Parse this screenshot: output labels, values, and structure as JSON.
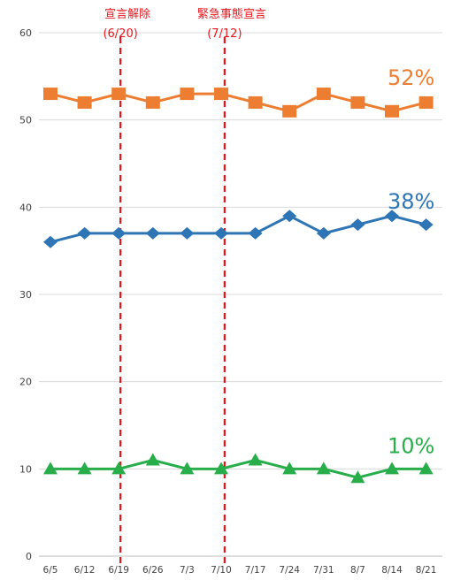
{
  "chart_data": {
    "type": "line",
    "title": "",
    "xlabel": "",
    "ylabel": "",
    "categories": [
      "6/5",
      "6/12",
      "6/19",
      "6/26",
      "7/3",
      "7/10",
      "7/17",
      "7/24",
      "7/31",
      "8/7",
      "8/14",
      "8/21"
    ],
    "ylim": [
      0,
      60
    ],
    "yticks": [
      0,
      10,
      20,
      30,
      40,
      50,
      60
    ],
    "grid": true,
    "series": [
      {
        "values": [
          53,
          52,
          53,
          52,
          53,
          53,
          52,
          51,
          53,
          52,
          51,
          52
        ],
        "color": "#ed7d31",
        "marker": "square",
        "end_label": "52%"
      },
      {
        "values": [
          36,
          37,
          37,
          37,
          37,
          37,
          37,
          39,
          37,
          38,
          39,
          38
        ],
        "color": "#2e75b6",
        "marker": "diamond",
        "end_label": "38%"
      },
      {
        "values": [
          10,
          10,
          10,
          11,
          10,
          10,
          11,
          10,
          10,
          9,
          10,
          10
        ],
        "color": "#27ae4a",
        "marker": "triangle",
        "end_label": "10%"
      }
    ],
    "annotations": [
      {
        "label": "宣言解除",
        "sublabel": "(6/20)",
        "between": [
          "6/19",
          "6/26"
        ],
        "fraction": 0.05,
        "color": "#e8141c"
      },
      {
        "label": "緊急事態宣言",
        "sublabel": "(7/12)",
        "between": [
          "7/10",
          "7/17"
        ],
        "fraction": 0.1,
        "color": "#e8141c"
      }
    ]
  }
}
